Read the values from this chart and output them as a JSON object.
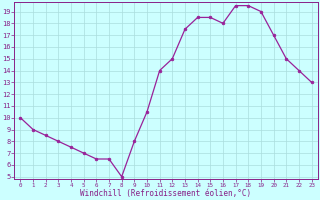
{
  "x": [
    0,
    1,
    2,
    3,
    4,
    5,
    6,
    7,
    8,
    9,
    10,
    11,
    12,
    13,
    14,
    15,
    16,
    17,
    18,
    19,
    20,
    21,
    22,
    23
  ],
  "y": [
    10,
    9,
    8.5,
    8,
    7.5,
    7,
    6.5,
    6.5,
    5,
    8,
    10.5,
    14,
    15,
    17.5,
    18.5,
    18.5,
    18,
    19.5,
    19.5,
    19,
    17,
    15,
    14,
    13
  ],
  "line_color": "#992299",
  "marker": "o",
  "marker_size": 2,
  "bg_color": "#ccffff",
  "grid_color": "#aadddd",
  "xlabel": "Windchill (Refroidissement éolien,°C)",
  "xlabel_color": "#882288",
  "tick_color": "#882288",
  "ylim": [
    5,
    19.5
  ],
  "xlim": [
    -0.5,
    23.5
  ],
  "yticks": [
    5,
    6,
    7,
    8,
    9,
    10,
    11,
    12,
    13,
    14,
    15,
    16,
    17,
    18,
    19
  ],
  "xticks": [
    0,
    1,
    2,
    3,
    4,
    5,
    6,
    7,
    8,
    9,
    10,
    11,
    12,
    13,
    14,
    15,
    16,
    17,
    18,
    19,
    20,
    21,
    22,
    23
  ]
}
